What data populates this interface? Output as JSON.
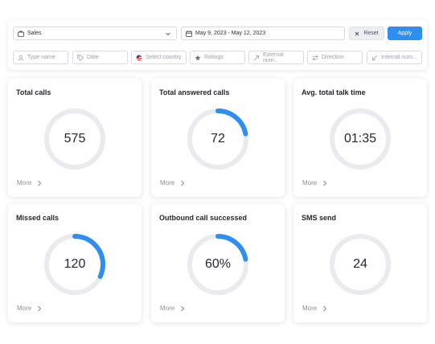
{
  "filters": {
    "team_select": {
      "value": "Sales",
      "icon": "briefcase-icon"
    },
    "date_range": {
      "value": "May 9, 2023 - May 12, 2023",
      "icon": "calendar-icon"
    },
    "reset_label": "Reset",
    "apply_label": "Apply",
    "type_name_placeholder": "Type name",
    "date_placeholder": "Date",
    "country_placeholder": "Select country",
    "ratings_placeholder": "Ratings",
    "external_num_placeholder": "External num...",
    "direction_placeholder": "Direction",
    "internal_num_placeholder": "Internal num..."
  },
  "colors": {
    "accent": "#2f8ff0",
    "track": "#e9ebef"
  },
  "cards": [
    {
      "title": "Total calls",
      "value": "575",
      "progress": 0,
      "more": "More"
    },
    {
      "title": "Total answered calls",
      "value": "72",
      "progress": 0.22,
      "more": "More"
    },
    {
      "title": "Avg. total talk time",
      "value": "01:35",
      "progress": 0,
      "more": "More"
    },
    {
      "title": "Missed calls",
      "value": "120",
      "progress": 0.32,
      "more": "More"
    },
    {
      "title": "Outbound call successed",
      "value": "60%",
      "progress": 0.22,
      "more": "More"
    },
    {
      "title": "SMS send",
      "value": "24",
      "progress": 0,
      "more": "More"
    }
  ]
}
